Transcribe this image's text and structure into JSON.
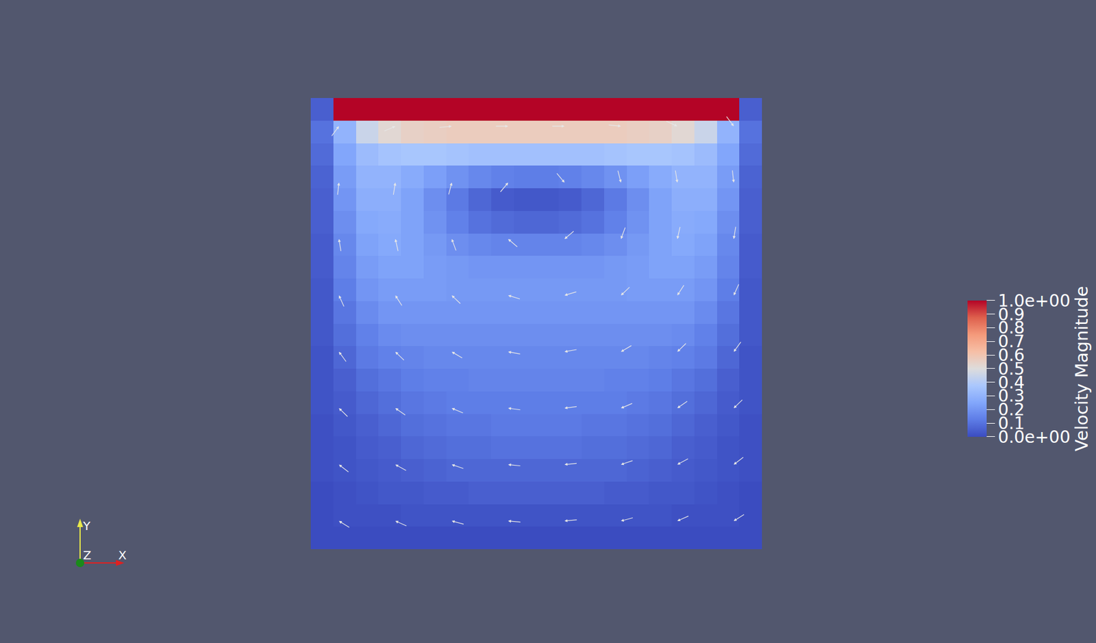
{
  "chart_data": {
    "type": "heatmap",
    "colorbar_title": "Velocity Magnitude",
    "tick_labels": false,
    "xlim": [
      0,
      1
    ],
    "ylim": [
      0,
      1
    ],
    "x": [
      0.025,
      0.075,
      0.125,
      0.175,
      0.225,
      0.275,
      0.325,
      0.375,
      0.425,
      0.475,
      0.525,
      0.575,
      0.625,
      0.675,
      0.725,
      0.775,
      0.825,
      0.875,
      0.925,
      0.975
    ],
    "y": [
      0.025,
      0.075,
      0.125,
      0.175,
      0.225,
      0.275,
      0.325,
      0.375,
      0.425,
      0.475,
      0.525,
      0.575,
      0.625,
      0.675,
      0.725,
      0.775,
      0.825,
      0.875,
      0.925,
      0.975
    ],
    "cells": [
      [
        0,
        0,
        0,
        0,
        0,
        0,
        0,
        0,
        0,
        0,
        0,
        0,
        0,
        0,
        0,
        0,
        0,
        0,
        0,
        0
      ],
      [
        0.0,
        0.01,
        0.01,
        0.01,
        0.02,
        0.02,
        0.02,
        0.02,
        0.02,
        0.02,
        0.02,
        0.02,
        0.02,
        0.02,
        0.02,
        0.02,
        0.01,
        0.01,
        0.01,
        0.0
      ],
      [
        0.0,
        0.01,
        0.02,
        0.03,
        0.03,
        0.04,
        0.04,
        0.05,
        0.05,
        0.05,
        0.05,
        0.05,
        0.05,
        0.04,
        0.04,
        0.03,
        0.03,
        0.02,
        0.01,
        0.0
      ],
      [
        0.01,
        0.02,
        0.03,
        0.04,
        0.05,
        0.06,
        0.07,
        0.07,
        0.07,
        0.07,
        0.07,
        0.07,
        0.07,
        0.07,
        0.06,
        0.05,
        0.04,
        0.03,
        0.02,
        0.01
      ],
      [
        0.01,
        0.02,
        0.04,
        0.05,
        0.07,
        0.08,
        0.09,
        0.09,
        0.1,
        0.1,
        0.1,
        0.1,
        0.09,
        0.09,
        0.08,
        0.07,
        0.05,
        0.04,
        0.02,
        0.01
      ],
      [
        0.01,
        0.03,
        0.05,
        0.07,
        0.09,
        0.1,
        0.11,
        0.11,
        0.12,
        0.12,
        0.12,
        0.12,
        0.11,
        0.11,
        0.1,
        0.09,
        0.07,
        0.05,
        0.03,
        0.01
      ],
      [
        0.02,
        0.04,
        0.07,
        0.09,
        0.11,
        0.12,
        0.13,
        0.13,
        0.13,
        0.13,
        0.13,
        0.13,
        0.13,
        0.13,
        0.12,
        0.11,
        0.09,
        0.07,
        0.04,
        0.02
      ],
      [
        0.02,
        0.05,
        0.09,
        0.11,
        0.13,
        0.14,
        0.14,
        0.15,
        0.15,
        0.15,
        0.15,
        0.15,
        0.15,
        0.14,
        0.14,
        0.13,
        0.11,
        0.09,
        0.05,
        0.02
      ],
      [
        0.02,
        0.07,
        0.12,
        0.14,
        0.15,
        0.16,
        0.16,
        0.16,
        0.16,
        0.16,
        0.16,
        0.16,
        0.16,
        0.16,
        0.16,
        0.15,
        0.14,
        0.12,
        0.07,
        0.02
      ],
      [
        0.03,
        0.09,
        0.14,
        0.17,
        0.18,
        0.18,
        0.18,
        0.18,
        0.18,
        0.18,
        0.18,
        0.18,
        0.18,
        0.18,
        0.18,
        0.18,
        0.17,
        0.14,
        0.09,
        0.03
      ],
      [
        0.03,
        0.11,
        0.17,
        0.2,
        0.2,
        0.2,
        0.2,
        0.2,
        0.2,
        0.2,
        0.2,
        0.2,
        0.2,
        0.2,
        0.2,
        0.2,
        0.2,
        0.17,
        0.11,
        0.03
      ],
      [
        0.03,
        0.13,
        0.2,
        0.22,
        0.22,
        0.22,
        0.21,
        0.21,
        0.21,
        0.21,
        0.21,
        0.21,
        0.21,
        0.21,
        0.22,
        0.22,
        0.22,
        0.2,
        0.13,
        0.03
      ],
      [
        0.04,
        0.15,
        0.22,
        0.24,
        0.24,
        0.22,
        0.21,
        0.2,
        0.2,
        0.2,
        0.2,
        0.2,
        0.2,
        0.21,
        0.22,
        0.24,
        0.24,
        0.22,
        0.15,
        0.04
      ],
      [
        0.04,
        0.16,
        0.24,
        0.26,
        0.24,
        0.21,
        0.18,
        0.16,
        0.15,
        0.15,
        0.15,
        0.15,
        0.16,
        0.18,
        0.21,
        0.24,
        0.26,
        0.24,
        0.16,
        0.04
      ],
      [
        0.05,
        0.18,
        0.26,
        0.27,
        0.24,
        0.19,
        0.14,
        0.1,
        0.08,
        0.07,
        0.07,
        0.08,
        0.1,
        0.14,
        0.19,
        0.24,
        0.27,
        0.26,
        0.18,
        0.05
      ],
      [
        0.05,
        0.2,
        0.28,
        0.28,
        0.24,
        0.18,
        0.12,
        0.07,
        0.04,
        0.03,
        0.03,
        0.04,
        0.07,
        0.12,
        0.18,
        0.24,
        0.28,
        0.28,
        0.2,
        0.05
      ],
      [
        0.06,
        0.22,
        0.3,
        0.3,
        0.27,
        0.23,
        0.19,
        0.16,
        0.14,
        0.13,
        0.13,
        0.14,
        0.16,
        0.19,
        0.23,
        0.27,
        0.3,
        0.3,
        0.22,
        0.06
      ],
      [
        0.08,
        0.25,
        0.33,
        0.36,
        0.37,
        0.37,
        0.36,
        0.35,
        0.35,
        0.35,
        0.35,
        0.35,
        0.35,
        0.36,
        0.37,
        0.37,
        0.36,
        0.33,
        0.25,
        0.08
      ],
      [
        0.1,
        0.3,
        0.45,
        0.52,
        0.55,
        0.56,
        0.57,
        0.57,
        0.57,
        0.57,
        0.57,
        0.57,
        0.57,
        0.57,
        0.56,
        0.55,
        0.52,
        0.45,
        0.3,
        0.1
      ],
      [
        0.05,
        1.0,
        1.0,
        1.0,
        1.0,
        1.0,
        1.0,
        1.0,
        1.0,
        1.0,
        1.0,
        1.0,
        1.0,
        1.0,
        1.0,
        1.0,
        1.0,
        1.0,
        1.0,
        0.05
      ]
    ],
    "zlim": [
      0,
      1
    ],
    "zticks": [
      {
        "value": 0,
        "label": "0.0e+00"
      },
      0.1,
      0.2,
      0.3,
      0.4,
      0.5,
      0.6,
      0.7,
      0.8,
      0.9,
      {
        "value": 1,
        "label": "1.0e+00"
      }
    ],
    "vectors": {
      "x": [
        0.0625,
        0.1875,
        0.3125,
        0.4375,
        0.5625,
        0.6875,
        0.8125,
        0.9375
      ],
      "y": [
        0.0625,
        0.1875,
        0.3125,
        0.4375,
        0.5625,
        0.6875,
        0.8125,
        0.9375
      ],
      "u": [
        [
          -0.85,
          -0.91,
          -0.97,
          -1,
          -1,
          -0.97,
          -0.91,
          -0.85
        ],
        [
          -0.79,
          -0.88,
          -0.95,
          -0.99,
          -0.99,
          -0.95,
          -0.88,
          -0.79
        ],
        [
          -0.72,
          -0.82,
          -0.92,
          -0.99,
          -0.99,
          -0.92,
          -0.82,
          -0.72
        ],
        [
          -0.59,
          -0.72,
          -0.86,
          -0.98,
          -0.98,
          -0.86,
          -0.72,
          -0.59
        ],
        [
          -0.41,
          -0.54,
          -0.72,
          -0.96,
          -0.96,
          -0.72,
          -0.54,
          -0.41
        ],
        [
          -0.16,
          -0.22,
          -0.35,
          -0.76,
          -0.76,
          -0.35,
          -0.22,
          -0.16
        ],
        [
          0.11,
          0.16,
          0.25,
          0.64,
          0.64,
          0.25,
          0.16,
          0.11
        ],
        [
          0.6,
          0.9,
          1,
          1,
          1,
          1,
          0.9,
          0.6
        ]
      ],
      "v": [
        [
          0.53,
          0.4,
          0.26,
          0.09,
          -0.09,
          -0.26,
          -0.4,
          -0.53
        ],
        [
          0.61,
          0.48,
          0.32,
          0.1,
          -0.1,
          -0.32,
          -0.48,
          -0.61
        ],
        [
          0.7,
          0.57,
          0.39,
          0.13,
          -0.13,
          -0.39,
          -0.57,
          -0.7
        ],
        [
          0.81,
          0.7,
          0.51,
          0.18,
          -0.18,
          -0.51,
          -0.7,
          -0.81
        ],
        [
          0.91,
          0.84,
          0.69,
          0.29,
          -0.29,
          -0.69,
          -0.84,
          -0.91
        ],
        [
          0.99,
          0.98,
          0.94,
          0.65,
          -0.65,
          -0.94,
          -0.98,
          -0.99
        ],
        [
          0.99,
          0.99,
          0.97,
          0.77,
          -0.77,
          -0.97,
          -0.99,
          -0.99
        ],
        [
          0.8,
          0.4,
          0.1,
          0,
          0,
          -0.1,
          -0.4,
          -0.8
        ]
      ]
    },
    "axes_triad": {
      "x": "X",
      "y": "Y",
      "z": "Z"
    }
  }
}
